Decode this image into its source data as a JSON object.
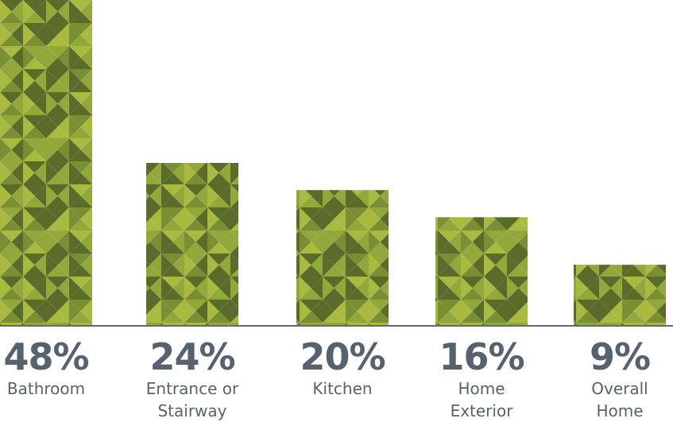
{
  "chart_data": {
    "type": "bar",
    "categories": [
      "Bathroom",
      "Entrance or Stairway",
      "Kitchen",
      "Home Exterior",
      "Overall Home"
    ],
    "values": [
      48,
      24,
      20,
      16,
      9
    ],
    "value_labels": [
      "48%",
      "24%",
      "20%",
      "16%",
      "9%"
    ],
    "colors": [
      "#5a6b2a",
      "#7a8f33",
      "#93a83b",
      "#a8ba40"
    ],
    "ylim": [
      0,
      48
    ]
  }
}
